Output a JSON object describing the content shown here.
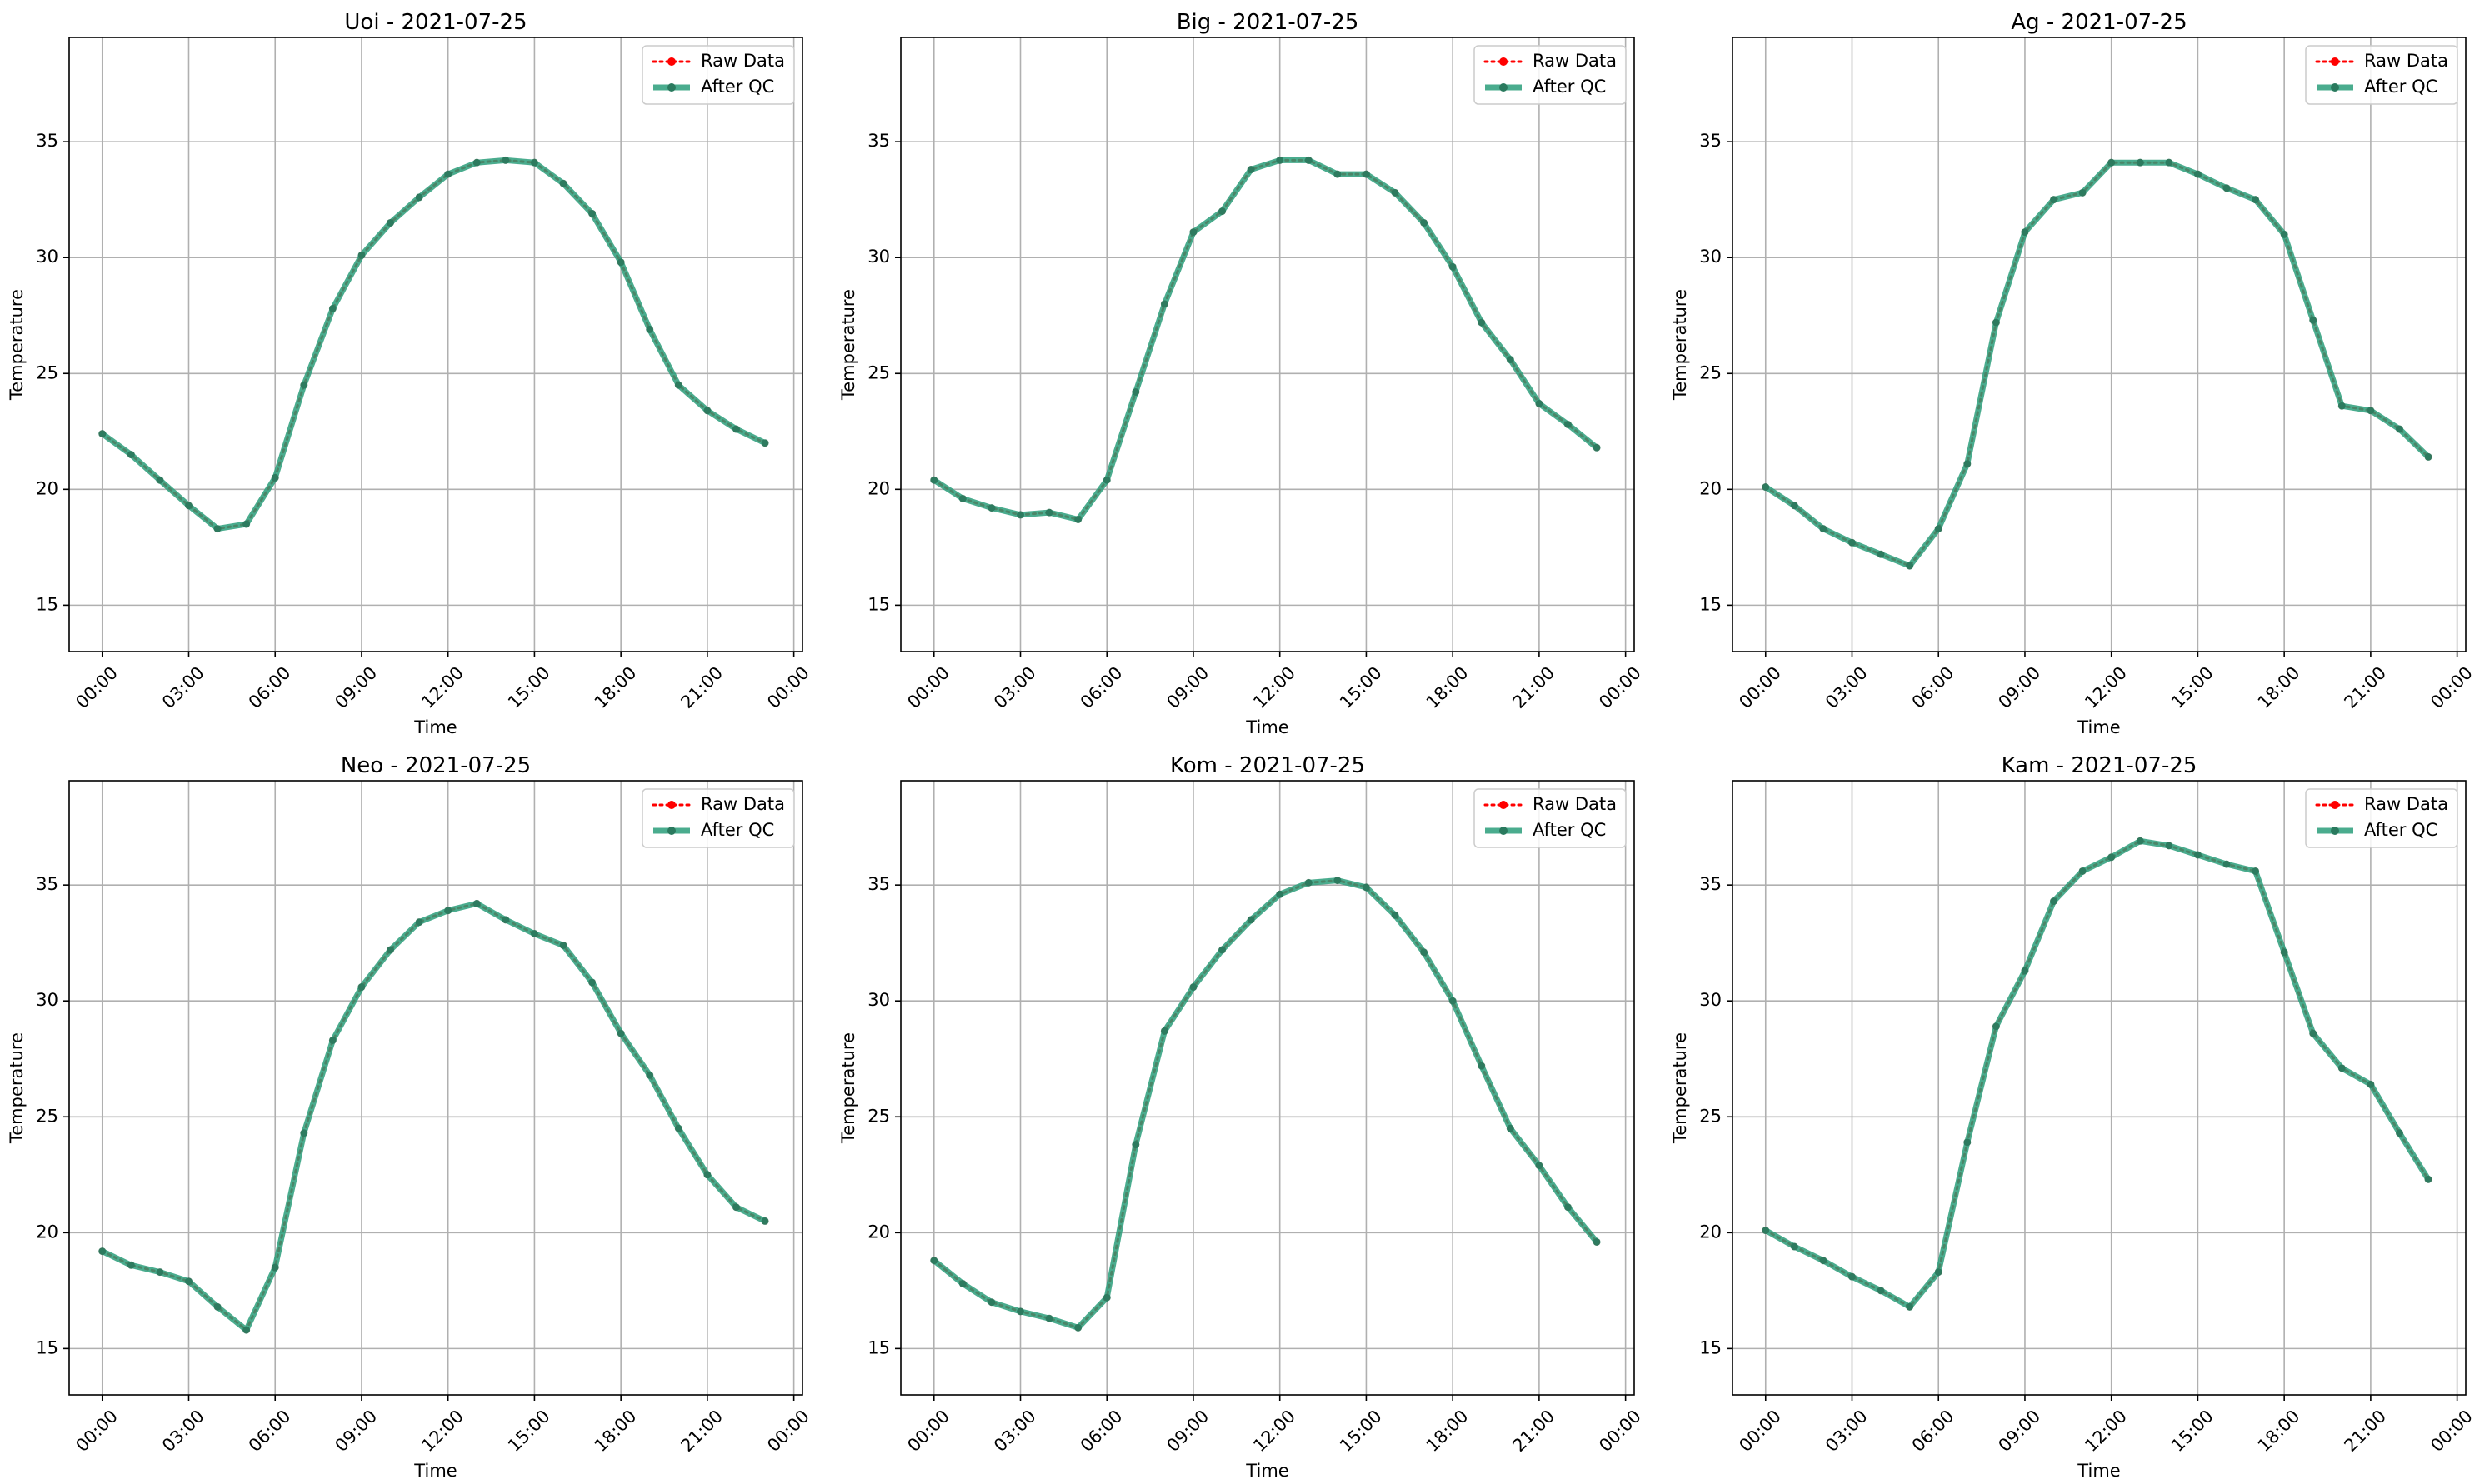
{
  "chart_data": [
    {
      "type": "line",
      "title": "Uoi - 2021-07-25",
      "xlabel": "Time",
      "ylabel": "Temperature",
      "x": [
        "00:00",
        "01:00",
        "02:00",
        "03:00",
        "04:00",
        "05:00",
        "06:00",
        "07:00",
        "08:00",
        "09:00",
        "10:00",
        "11:00",
        "12:00",
        "13:00",
        "14:00",
        "15:00",
        "16:00",
        "17:00",
        "18:00",
        "19:00",
        "20:00",
        "21:00",
        "22:00",
        "23:00"
      ],
      "x_ticks": [
        "00:00",
        "03:00",
        "06:00",
        "09:00",
        "12:00",
        "15:00",
        "18:00",
        "21:00",
        "00:00"
      ],
      "y_ticks": [
        15,
        20,
        25,
        30,
        35
      ],
      "ylim": [
        13.0,
        39.5
      ],
      "grid": true,
      "legend_position": "top-right",
      "series": [
        {
          "name": "Raw Data",
          "color": "#ff0000",
          "style": "dotted",
          "values": [
            22.4,
            21.5,
            20.4,
            19.3,
            18.3,
            18.5,
            20.5,
            24.5,
            27.8,
            30.1,
            31.5,
            32.6,
            33.6,
            34.1,
            34.2,
            34.1,
            33.2,
            31.9,
            29.8,
            26.9,
            24.5,
            23.4,
            22.6,
            22.0
          ]
        },
        {
          "name": "After QC",
          "color": "#2a9d7a",
          "style": "solid",
          "values": [
            22.4,
            21.5,
            20.4,
            19.3,
            18.3,
            18.5,
            20.5,
            24.5,
            27.8,
            30.1,
            31.5,
            32.6,
            33.6,
            34.1,
            34.2,
            34.1,
            33.2,
            31.9,
            29.8,
            26.9,
            24.5,
            23.4,
            22.6,
            22.0
          ]
        }
      ]
    },
    {
      "type": "line",
      "title": "Big - 2021-07-25",
      "xlabel": "Time",
      "ylabel": "Temperature",
      "x": [
        "00:00",
        "01:00",
        "02:00",
        "03:00",
        "04:00",
        "05:00",
        "06:00",
        "07:00",
        "08:00",
        "09:00",
        "10:00",
        "11:00",
        "12:00",
        "13:00",
        "14:00",
        "15:00",
        "16:00",
        "17:00",
        "18:00",
        "19:00",
        "20:00",
        "21:00",
        "22:00",
        "23:00"
      ],
      "x_ticks": [
        "00:00",
        "03:00",
        "06:00",
        "09:00",
        "12:00",
        "15:00",
        "18:00",
        "21:00",
        "00:00"
      ],
      "y_ticks": [
        15,
        20,
        25,
        30,
        35
      ],
      "ylim": [
        13.0,
        39.5
      ],
      "grid": true,
      "legend_position": "top-right",
      "series": [
        {
          "name": "Raw Data",
          "color": "#ff0000",
          "style": "dotted",
          "values": [
            20.4,
            19.6,
            19.2,
            18.9,
            19.0,
            18.7,
            20.4,
            24.2,
            28.0,
            31.1,
            32.0,
            33.8,
            34.2,
            34.2,
            33.6,
            33.6,
            32.8,
            31.5,
            29.6,
            27.2,
            25.6,
            23.7,
            22.8,
            21.8
          ]
        },
        {
          "name": "After QC",
          "color": "#2a9d7a",
          "style": "solid",
          "values": [
            20.4,
            19.6,
            19.2,
            18.9,
            19.0,
            18.7,
            20.4,
            24.2,
            28.0,
            31.1,
            32.0,
            33.8,
            34.2,
            34.2,
            33.6,
            33.6,
            32.8,
            31.5,
            29.6,
            27.2,
            25.6,
            23.7,
            22.8,
            21.8
          ]
        }
      ]
    },
    {
      "type": "line",
      "title": "Ag - 2021-07-25",
      "xlabel": "Time",
      "ylabel": "Temperature",
      "x": [
        "00:00",
        "01:00",
        "02:00",
        "03:00",
        "04:00",
        "05:00",
        "06:00",
        "07:00",
        "08:00",
        "09:00",
        "10:00",
        "11:00",
        "12:00",
        "13:00",
        "14:00",
        "15:00",
        "16:00",
        "17:00",
        "18:00",
        "19:00",
        "20:00",
        "21:00",
        "22:00",
        "23:00"
      ],
      "x_ticks": [
        "00:00",
        "03:00",
        "06:00",
        "09:00",
        "12:00",
        "15:00",
        "18:00",
        "21:00",
        "00:00"
      ],
      "y_ticks": [
        15,
        20,
        25,
        30,
        35
      ],
      "ylim": [
        13.0,
        39.5
      ],
      "grid": true,
      "legend_position": "top-right",
      "series": [
        {
          "name": "Raw Data",
          "color": "#ff0000",
          "style": "dotted",
          "values": [
            20.1,
            19.3,
            18.3,
            17.7,
            17.2,
            16.7,
            18.3,
            21.1,
            27.2,
            31.1,
            32.5,
            32.8,
            34.1,
            34.1,
            34.1,
            33.6,
            33.0,
            32.5,
            31.0,
            27.3,
            23.6,
            23.4,
            22.6,
            21.4
          ]
        },
        {
          "name": "After QC",
          "color": "#2a9d7a",
          "style": "solid",
          "values": [
            20.1,
            19.3,
            18.3,
            17.7,
            17.2,
            16.7,
            18.3,
            21.1,
            27.2,
            31.1,
            32.5,
            32.8,
            34.1,
            34.1,
            34.1,
            33.6,
            33.0,
            32.5,
            31.0,
            27.3,
            23.6,
            23.4,
            22.6,
            21.4
          ]
        }
      ]
    },
    {
      "type": "line",
      "title": "Neo - 2021-07-25",
      "xlabel": "Time",
      "ylabel": "Temperature",
      "x": [
        "00:00",
        "01:00",
        "02:00",
        "03:00",
        "04:00",
        "05:00",
        "06:00",
        "07:00",
        "08:00",
        "09:00",
        "10:00",
        "11:00",
        "12:00",
        "13:00",
        "14:00",
        "15:00",
        "16:00",
        "17:00",
        "18:00",
        "19:00",
        "20:00",
        "21:00",
        "22:00",
        "23:00"
      ],
      "x_ticks": [
        "00:00",
        "03:00",
        "06:00",
        "09:00",
        "12:00",
        "15:00",
        "18:00",
        "21:00",
        "00:00"
      ],
      "y_ticks": [
        15,
        20,
        25,
        30,
        35
      ],
      "ylim": [
        13.0,
        39.5
      ],
      "grid": true,
      "legend_position": "top-right",
      "series": [
        {
          "name": "Raw Data",
          "color": "#ff0000",
          "style": "dotted",
          "values": [
            19.2,
            18.6,
            18.3,
            17.9,
            16.8,
            15.8,
            18.5,
            24.3,
            28.3,
            30.6,
            32.2,
            33.4,
            33.9,
            34.2,
            33.5,
            32.9,
            32.4,
            30.8,
            28.6,
            26.8,
            24.5,
            22.5,
            21.1,
            20.5
          ]
        },
        {
          "name": "After QC",
          "color": "#2a9d7a",
          "style": "solid",
          "values": [
            19.2,
            18.6,
            18.3,
            17.9,
            16.8,
            15.8,
            18.5,
            24.3,
            28.3,
            30.6,
            32.2,
            33.4,
            33.9,
            34.2,
            33.5,
            32.9,
            32.4,
            30.8,
            28.6,
            26.8,
            24.5,
            22.5,
            21.1,
            20.5
          ]
        }
      ]
    },
    {
      "type": "line",
      "title": "Kom - 2021-07-25",
      "xlabel": "Time",
      "ylabel": "Temperature",
      "x": [
        "00:00",
        "01:00",
        "02:00",
        "03:00",
        "04:00",
        "05:00",
        "06:00",
        "07:00",
        "08:00",
        "09:00",
        "10:00",
        "11:00",
        "12:00",
        "13:00",
        "14:00",
        "15:00",
        "16:00",
        "17:00",
        "18:00",
        "19:00",
        "20:00",
        "21:00",
        "22:00",
        "23:00"
      ],
      "x_ticks": [
        "00:00",
        "03:00",
        "06:00",
        "09:00",
        "12:00",
        "15:00",
        "18:00",
        "21:00",
        "00:00"
      ],
      "y_ticks": [
        15,
        20,
        25,
        30,
        35
      ],
      "ylim": [
        13.0,
        39.5
      ],
      "grid": true,
      "legend_position": "top-right",
      "series": [
        {
          "name": "Raw Data",
          "color": "#ff0000",
          "style": "dotted",
          "values": [
            18.8,
            17.8,
            17.0,
            16.6,
            16.3,
            15.9,
            17.2,
            23.8,
            28.7,
            30.6,
            32.2,
            33.5,
            34.6,
            35.1,
            35.2,
            34.9,
            33.7,
            32.1,
            30.0,
            27.2,
            24.5,
            22.9,
            21.1,
            19.6
          ]
        },
        {
          "name": "After QC",
          "color": "#2a9d7a",
          "style": "solid",
          "values": [
            18.8,
            17.8,
            17.0,
            16.6,
            16.3,
            15.9,
            17.2,
            23.8,
            28.7,
            30.6,
            32.2,
            33.5,
            34.6,
            35.1,
            35.2,
            34.9,
            33.7,
            32.1,
            30.0,
            27.2,
            24.5,
            22.9,
            21.1,
            19.6
          ]
        }
      ]
    },
    {
      "type": "line",
      "title": "Kam - 2021-07-25",
      "xlabel": "Time",
      "ylabel": "Temperature",
      "x": [
        "00:00",
        "01:00",
        "02:00",
        "03:00",
        "04:00",
        "05:00",
        "06:00",
        "07:00",
        "08:00",
        "09:00",
        "10:00",
        "11:00",
        "12:00",
        "13:00",
        "14:00",
        "15:00",
        "16:00",
        "17:00",
        "18:00",
        "19:00",
        "20:00",
        "21:00",
        "22:00",
        "23:00"
      ],
      "x_ticks": [
        "00:00",
        "03:00",
        "06:00",
        "09:00",
        "12:00",
        "15:00",
        "18:00",
        "21:00",
        "00:00"
      ],
      "y_ticks": [
        15,
        20,
        25,
        30,
        35
      ],
      "ylim": [
        13.0,
        39.5
      ],
      "grid": true,
      "legend_position": "top-right",
      "series": [
        {
          "name": "Raw Data",
          "color": "#ff0000",
          "style": "dotted",
          "values": [
            20.1,
            19.4,
            18.8,
            18.1,
            17.5,
            16.8,
            18.3,
            23.9,
            28.9,
            31.3,
            34.3,
            35.6,
            36.2,
            36.9,
            36.7,
            36.3,
            35.9,
            35.6,
            32.1,
            28.6,
            27.1,
            26.4,
            24.3,
            22.3
          ]
        },
        {
          "name": "After QC",
          "color": "#2a9d7a",
          "style": "solid",
          "values": [
            20.1,
            19.4,
            18.8,
            18.1,
            17.5,
            16.8,
            18.3,
            23.9,
            28.9,
            31.3,
            34.3,
            35.6,
            36.2,
            36.9,
            36.7,
            36.3,
            35.9,
            35.6,
            32.1,
            28.6,
            27.1,
            26.4,
            24.3,
            22.3
          ]
        }
      ]
    }
  ]
}
